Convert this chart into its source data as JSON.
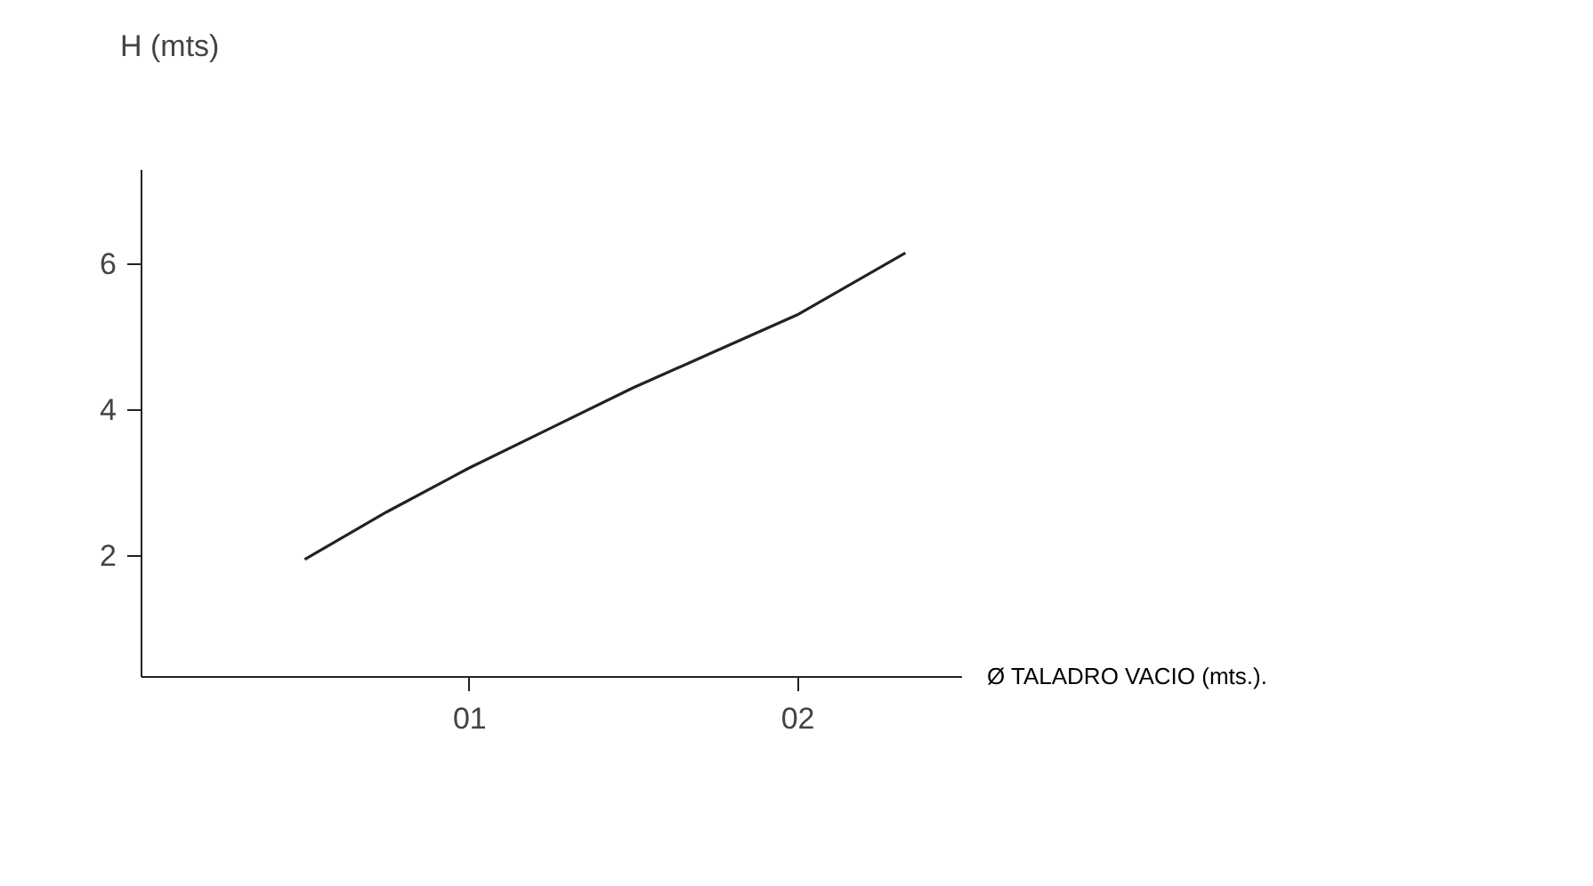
{
  "chart_data": {
    "type": "line",
    "xlabel": "Ø TALADRO VACIO (mts.).",
    "ylabel": "H (mts)",
    "x": [
      0.5,
      0.75,
      1,
      1.25,
      1.5,
      1.75,
      2,
      2.33
    ],
    "series": [
      {
        "color": "#222222",
        "values": [
          1.95,
          2.6,
          3.2,
          3.75,
          4.3,
          4.8,
          5.3,
          6.15
        ]
      }
    ],
    "xlim": [
      0,
      2.5
    ],
    "ylim": [
      0.35,
      7.3
    ],
    "xticks": [
      {
        "value": 1,
        "label": "01"
      },
      {
        "value": 2,
        "label": "02"
      }
    ],
    "yticks": [
      2,
      4,
      6
    ],
    "grid": false,
    "marker": "none",
    "line_style": "solid"
  }
}
